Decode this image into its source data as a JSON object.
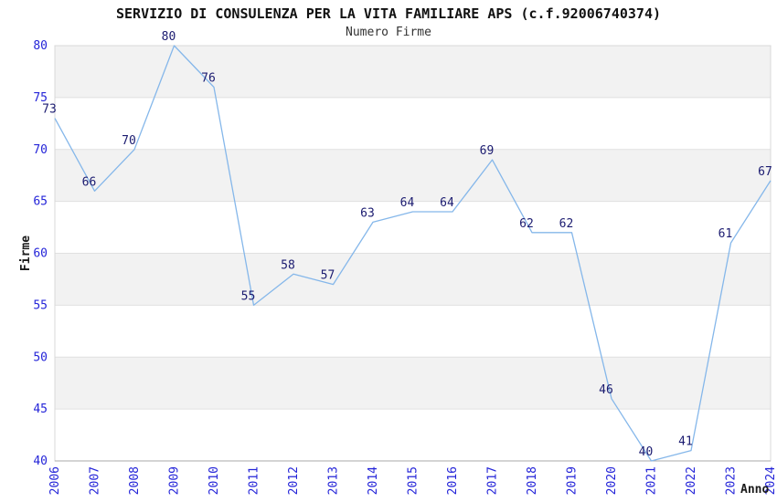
{
  "chart_data": {
    "type": "line",
    "title": "SERVIZIO DI CONSULENZA PER LA VITA FAMILIARE APS (c.f.92006740374)",
    "subtitle": "Numero Firme",
    "xlabel": "Anno",
    "ylabel": "Firme",
    "categories": [
      "2006",
      "2007",
      "2008",
      "2009",
      "2010",
      "2011",
      "2012",
      "2013",
      "2014",
      "2015",
      "2016",
      "2017",
      "2018",
      "2019",
      "2020",
      "2021",
      "2022",
      "2023",
      "2024"
    ],
    "values": [
      73,
      66,
      70,
      80,
      76,
      55,
      58,
      57,
      63,
      64,
      64,
      69,
      62,
      62,
      46,
      40,
      41,
      61,
      67
    ],
    "series_name": "Numero Firme",
    "ylim": [
      40,
      80
    ],
    "ytick_step": 5,
    "yticks": [
      40,
      45,
      50,
      55,
      60,
      65,
      70,
      75,
      80
    ],
    "grid": "alternating-horizontal-bands",
    "legend_position": "none",
    "point_labels_visible": true,
    "colors": {
      "line": "#85b7ea",
      "point_label": "#1b1b70",
      "tick_label": "#2424d8",
      "axis_text": "#1a1a1a",
      "title_text": "#111111",
      "subtitle_text": "#333333",
      "band_gray": "#f2f2f2",
      "band_white": "#ffffff",
      "gridline": "#e0e0e0",
      "plot_border": "#d8d8d8",
      "axis_line": "#a8a8a8",
      "background": "#ffffff"
    }
  }
}
